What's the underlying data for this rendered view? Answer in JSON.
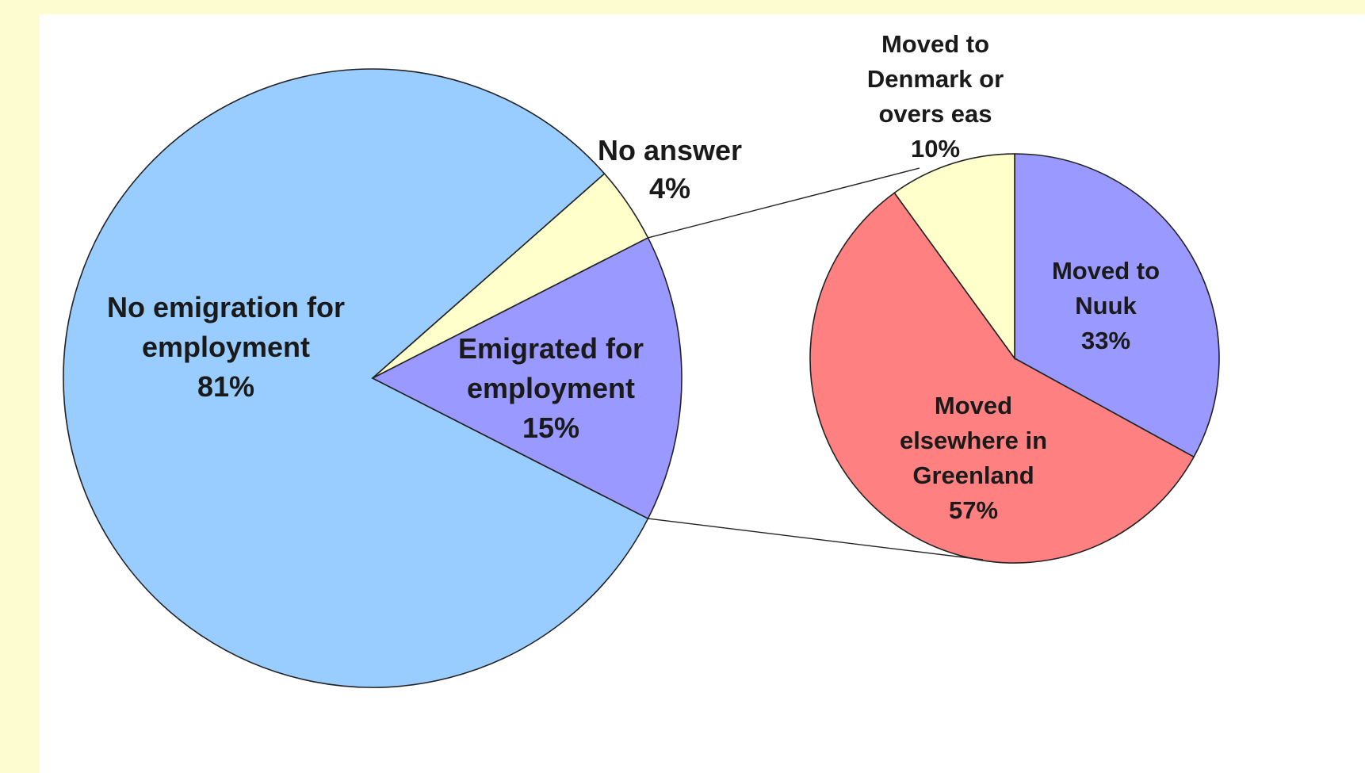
{
  "chart_data": {
    "type": "pie",
    "title": "",
    "main_pie": {
      "slices": [
        {
          "label_lines": [
            "No emigration for",
            "employment",
            "81%"
          ],
          "value": 81,
          "color": "#99ccff"
        },
        {
          "label_lines": [
            "No answer",
            "4%"
          ],
          "value": 4,
          "color": "#ffffcc"
        },
        {
          "label_lines": [
            "Emigrated for",
            "employment",
            "15%"
          ],
          "value": 15,
          "color": "#9999ff"
        }
      ]
    },
    "breakdown_pie": {
      "of_slice": "Emigrated for employment",
      "slices": [
        {
          "label_lines": [
            "Moved to",
            "Nuuk",
            "33%"
          ],
          "value": 33,
          "color": "#9999ff"
        },
        {
          "label_lines": [
            "Moved",
            "elsewhere in",
            "Greenland",
            "57%"
          ],
          "value": 57,
          "color": "#ff8080"
        },
        {
          "label_lines": [
            "Moved to",
            "Denmark or",
            "overs eas",
            "10%"
          ],
          "value": 10,
          "color": "#ffffcc"
        }
      ]
    }
  }
}
